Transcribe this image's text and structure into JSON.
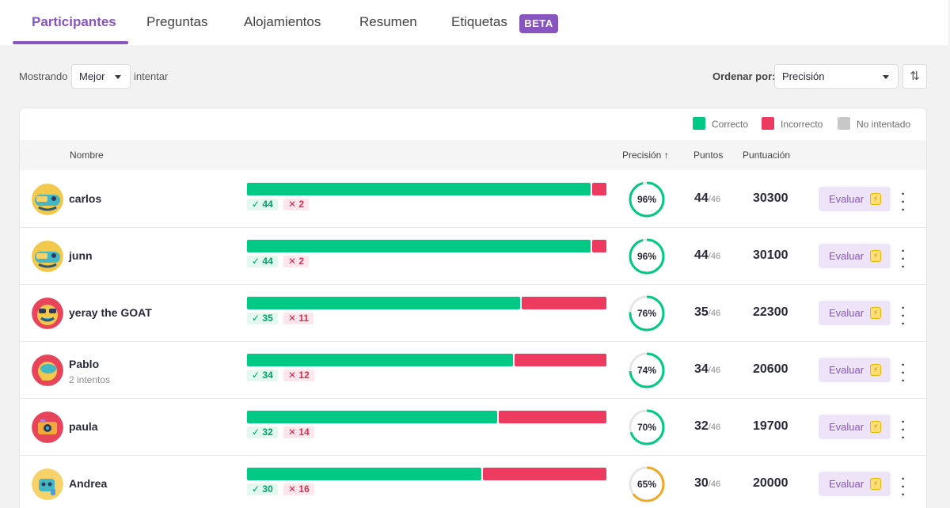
{
  "tabs": [
    {
      "label": "Participantes"
    },
    {
      "label": "Preguntas"
    },
    {
      "label": "Alojamientos"
    },
    {
      "label": "Resumen"
    },
    {
      "label": "Etiquetas"
    }
  ],
  "beta_badge": "BETA",
  "toolbar": {
    "showing_label": "Mostrando",
    "showing_value": "Mejor",
    "showing_suffix": "intentar",
    "sort_label": "Ordenar por:",
    "sort_value": "Precisión"
  },
  "legend": {
    "correct": "Correcto",
    "incorrect": "Incorrecto",
    "not_attempted": "No intentado"
  },
  "table_headers": {
    "name": "Nombre",
    "accuracy": "Precisión",
    "points": "Puntos",
    "score": "Puntuación"
  },
  "colors": {
    "accent": "#8854c0",
    "correct": "#00c985",
    "incorrect": "#ec3b5f",
    "not_attempted": "#c8c8c8",
    "ring_ok": "#00c985",
    "ring_warn": "#efa929"
  },
  "total_questions_label": "/46",
  "evaluate_label": "Evaluar",
  "participants": [
    {
      "name": "carlos",
      "sub": "",
      "correct": "44",
      "incorrect": "2",
      "pct_label": "96%",
      "accuracy": 0.96,
      "correct_frac": 0.957,
      "points": "44",
      "score": "30300",
      "avatar": "monster-teal-icon"
    },
    {
      "name": "junn",
      "sub": "",
      "correct": "44",
      "incorrect": "2",
      "pct_label": "96%",
      "accuracy": 0.96,
      "correct_frac": 0.957,
      "points": "44",
      "score": "30100",
      "avatar": "monster-teal-icon"
    },
    {
      "name": "yeray the GOAT",
      "sub": "",
      "correct": "35",
      "incorrect": "11",
      "pct_label": "76%",
      "accuracy": 0.76,
      "correct_frac": 0.761,
      "points": "35",
      "score": "22300",
      "avatar": "monster-red-icon"
    },
    {
      "name": "Pablo",
      "sub": "2 intentos",
      "correct": "34",
      "incorrect": "12",
      "pct_label": "74%",
      "accuracy": 0.74,
      "correct_frac": 0.739,
      "points": "34",
      "score": "20600",
      "avatar": "monster-red-teal-icon"
    },
    {
      "name": "paula",
      "sub": "",
      "correct": "32",
      "incorrect": "14",
      "pct_label": "70%",
      "accuracy": 0.7,
      "correct_frac": 0.696,
      "points": "32",
      "score": "19700",
      "avatar": "monster-camera-icon"
    },
    {
      "name": "Andrea",
      "sub": "",
      "correct": "30",
      "incorrect": "16",
      "pct_label": "65%",
      "accuracy": 0.65,
      "correct_frac": 0.652,
      "points": "30",
      "score": "20000",
      "avatar": "monster-yellow-icon"
    }
  ]
}
